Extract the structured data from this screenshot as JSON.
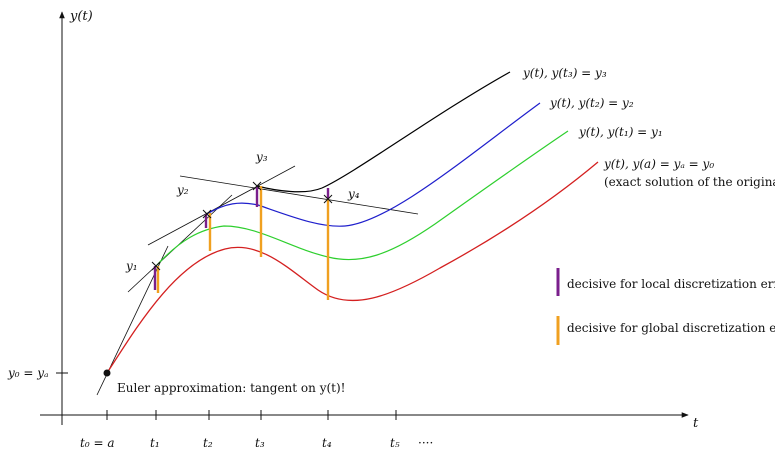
{
  "axes": {
    "y_label": "y(t)",
    "x_label": "t",
    "ya_label": "y₀ = yₐ",
    "ticks": [
      "t₀ = a",
      "t₁",
      "t₂",
      "t₃",
      "t₄",
      "t₅",
      "····"
    ]
  },
  "curves": [
    {
      "label": "y(t), y(t₃) = y₃",
      "color": "#000000"
    },
    {
      "label": "y(t), y(t₂) = y₂",
      "color": "#1f1fcc"
    },
    {
      "label": "y(t), y(t₁) = y₁",
      "color": "#2ecf2e"
    },
    {
      "label": "y(t), y(a) = yₐ = y₀",
      "color": "#d42020"
    }
  ],
  "exact_note": "(exact solution of the original IVP)",
  "euler_points": [
    "y₁",
    "y₂",
    "y₃",
    "y₄"
  ],
  "euler_note": "Euler approximation: tangent on y(t)!",
  "legend": [
    {
      "label": "decisive for local discretization error",
      "color": "#7a1f8c"
    },
    {
      "label": "decisive for global discretization error",
      "color": "#f0a020"
    }
  ]
}
